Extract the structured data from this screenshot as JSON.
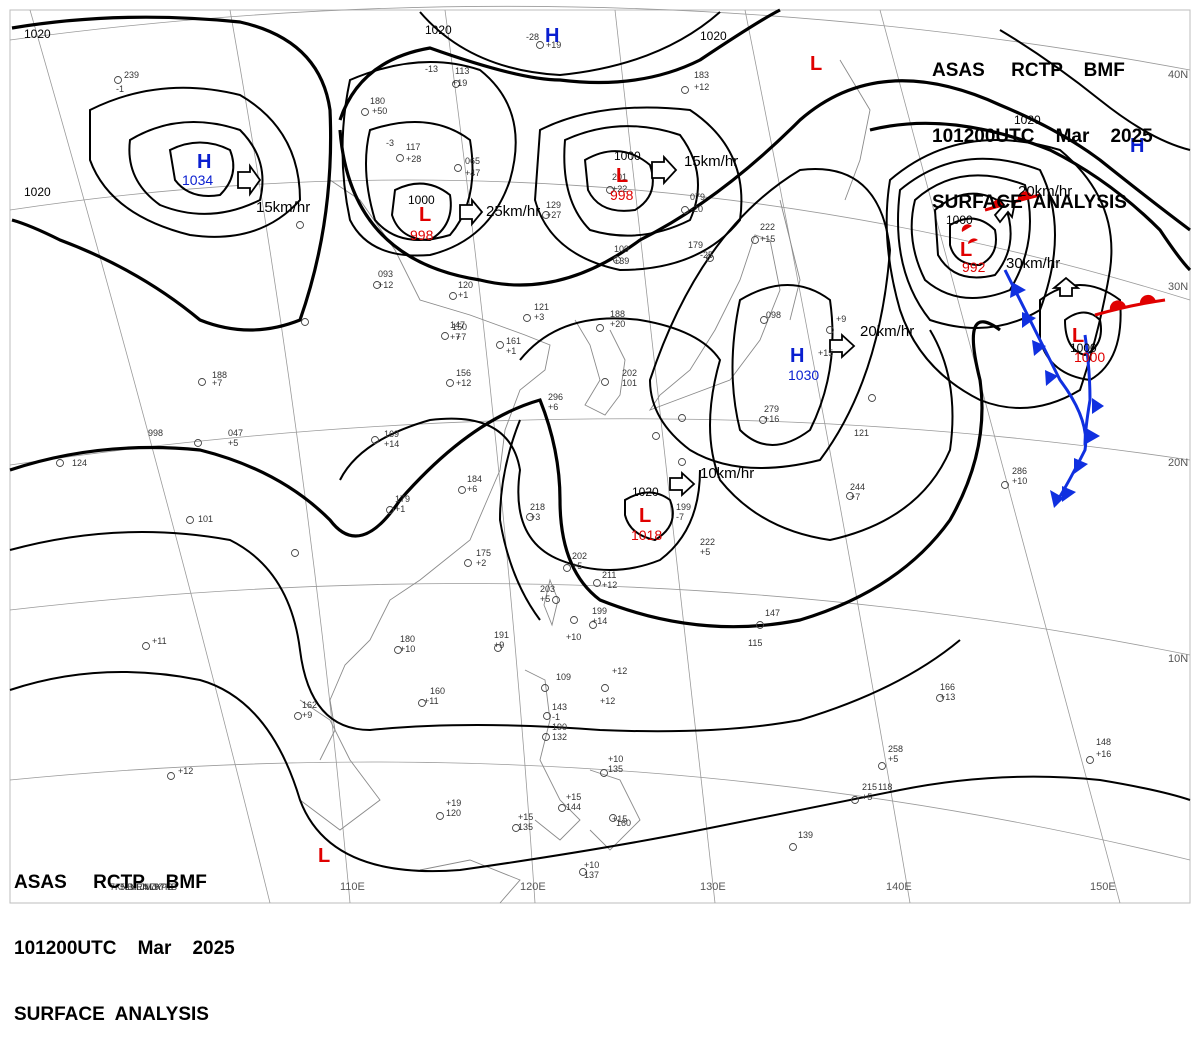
{
  "header": {
    "line1": "ASAS     RCTP    BMF",
    "line2": "101200UTC    Mar    2025",
    "line3": "SURFACE  ANALYSIS"
  },
  "colors": {
    "low": "#e00000",
    "high": "#0a1fd0",
    "cold_front": "#1030e0",
    "warm_front": "#e00000",
    "isobar": "#000000",
    "coast": "#8a8a8a"
  },
  "grid_labels": {
    "lon": [
      "110E",
      "120E",
      "130E",
      "140E",
      "150E"
    ],
    "lat": [
      "40N",
      "30N",
      "20N",
      "10N"
    ]
  },
  "isobar_labels": [
    "1020",
    "1020",
    "1020",
    "1020",
    "1020",
    "1000",
    "1000",
    "1000",
    "1000",
    "1020"
  ],
  "systems": [
    {
      "type": "H",
      "value": "1034"
    },
    {
      "type": "L",
      "value": "998"
    },
    {
      "type": "L",
      "value": "998"
    },
    {
      "type": "H",
      "value": ""
    },
    {
      "type": "L",
      "value": ""
    },
    {
      "type": "H",
      "value": "1030"
    },
    {
      "type": "L",
      "value": "992"
    },
    {
      "type": "H",
      "value": ""
    },
    {
      "type": "L",
      "value": "1000"
    },
    {
      "type": "L",
      "value": "1018"
    },
    {
      "type": "L",
      "value": ""
    }
  ],
  "movements": [
    "15km/hr",
    "25km/hr",
    "15km/hr",
    "20km/hr",
    "10km/hr",
    "20km/hr",
    "30km/hr"
  ],
  "stations": [
    "239",
    "-1",
    "180",
    "+50",
    "-13",
    "113",
    "+19",
    "-28",
    "+19",
    "183",
    "+12",
    "117",
    "+28",
    "-3",
    "065",
    "+47",
    "079",
    "-20",
    "201",
    "+22",
    "179",
    "-25",
    "129",
    "+27",
    "109",
    "+39",
    "222",
    "+15",
    "093",
    "+12",
    "120",
    "+1",
    "121",
    "+3",
    "188",
    "+20",
    "147",
    "+7",
    "150",
    "+7",
    "161",
    "+1",
    "156",
    "+12",
    "188",
    "+7",
    "998",
    "047",
    "+5",
    "169",
    "+14",
    "124",
    "101",
    "179",
    "+1",
    "184",
    "+6",
    "218",
    "+3",
    "199",
    "-7",
    "222",
    "+5",
    "175",
    "+2",
    "202",
    "+5",
    "211",
    "+12",
    "203",
    "+5",
    "199",
    "+14",
    "191",
    "+9",
    "180",
    "+10",
    "160",
    "+11",
    "162",
    "+9",
    "109",
    "+12",
    "143",
    "-1",
    "190",
    "132",
    "+10",
    "135",
    "+15",
    "144",
    "+15",
    "160",
    "+15",
    "135",
    "+19",
    "120",
    "+12",
    "147",
    "+11",
    "098",
    "+9",
    "202",
    "101",
    "279",
    "+16",
    "286",
    "+10",
    "244",
    "+7",
    "296",
    "+6",
    "166",
    "+13",
    "258",
    "+5",
    "215",
    "+5",
    "148",
    "+16",
    "139",
    "+10",
    "137",
    "+10",
    "115",
    "+12",
    "121",
    "118",
    "+15",
    "7KNB",
    "5LNE4",
    "VRNL9",
    "JMJY",
    "7KPB",
    "7KB"
  ]
}
